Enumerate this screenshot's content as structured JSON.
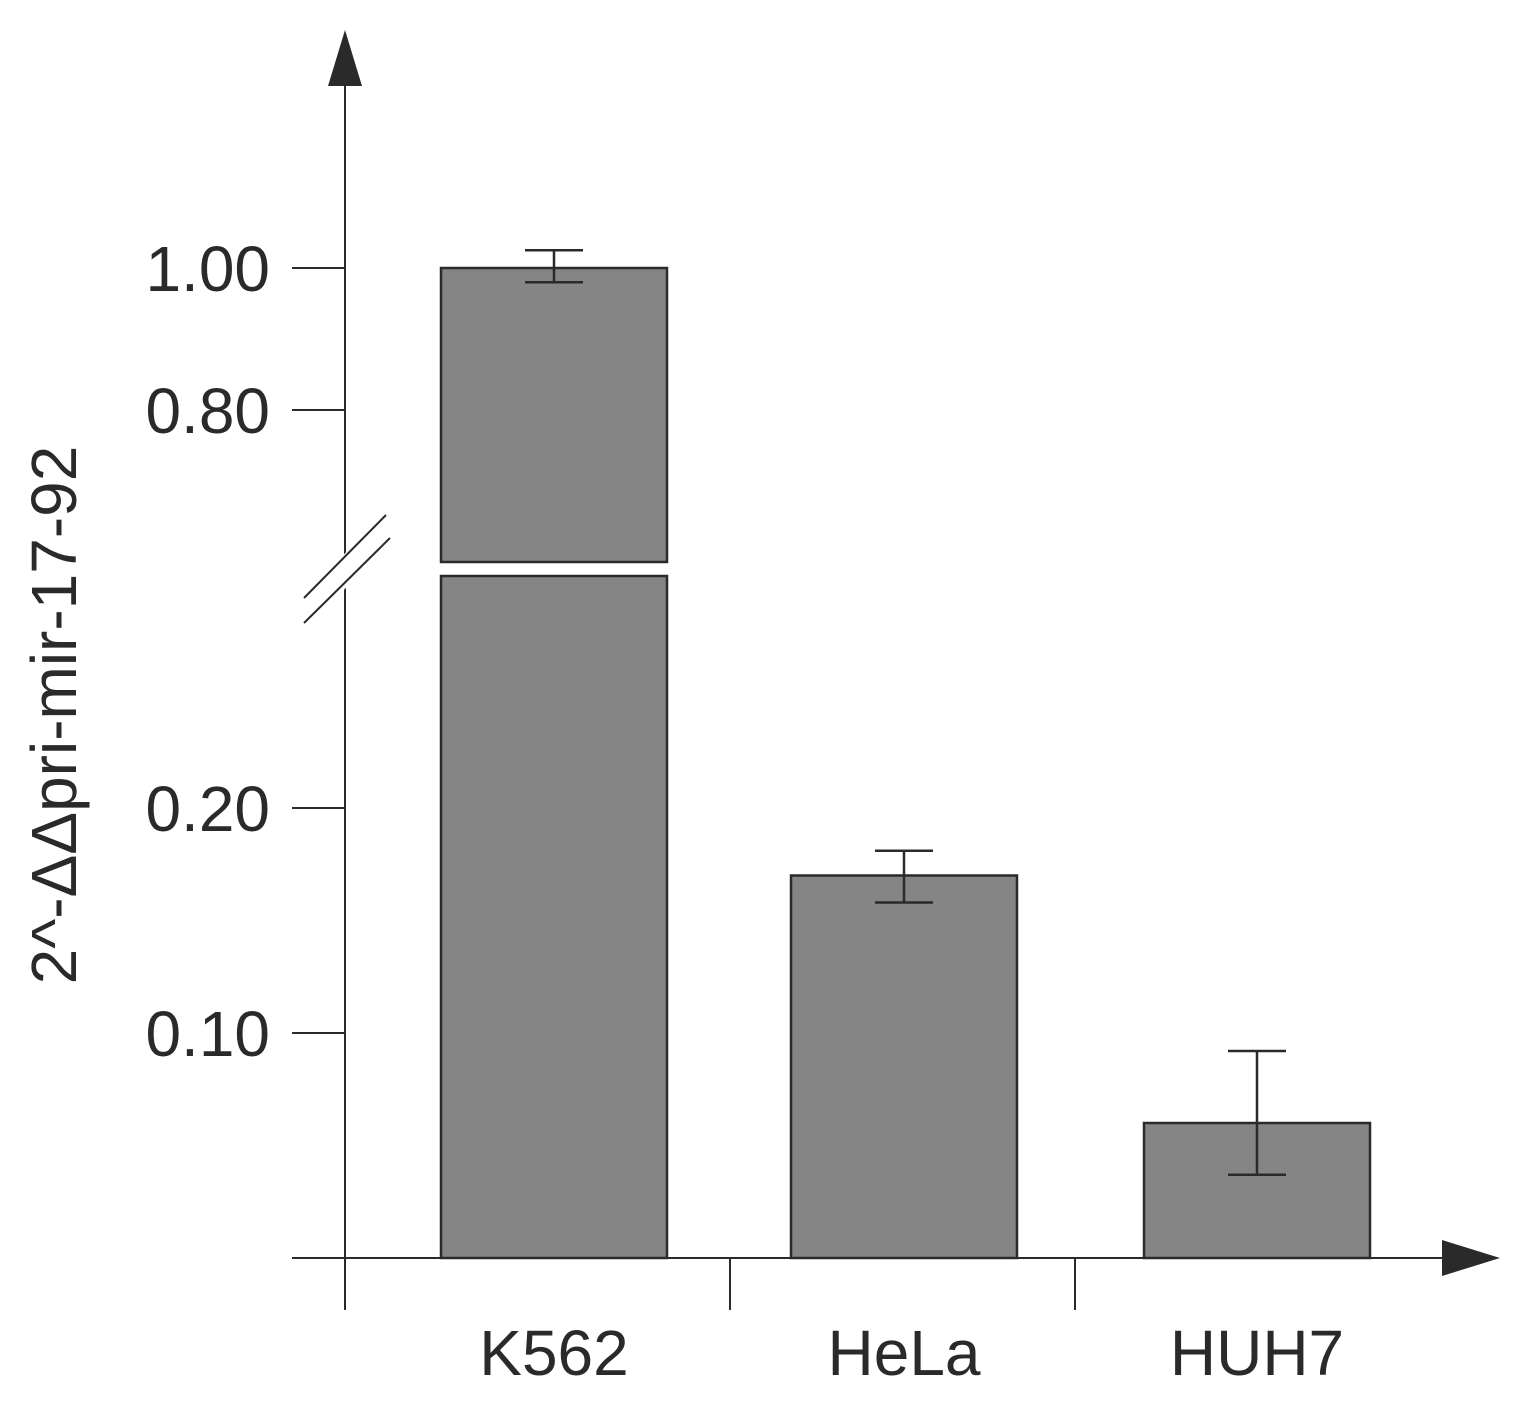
{
  "chart_data": {
    "type": "bar",
    "categories": [
      "K562",
      "HeLa",
      "HUH7"
    ],
    "values": [
      1.0,
      0.17,
      0.06
    ],
    "error": [
      [
        0.98,
        1.025
      ],
      [
        0.158,
        0.181
      ],
      [
        0.037,
        0.092
      ]
    ],
    "ylabel": "2^-ΔΔpri-mir-17-92",
    "xlabel": "",
    "y_ticks": [
      0.1,
      0.2,
      0.8,
      1.0
    ],
    "y_tick_labels": [
      "0.10",
      "0.20",
      "0.80",
      "1.00"
    ],
    "y_axis_break": [
      0.25,
      0.65
    ],
    "bar_color": "#858585",
    "axis_color": "#2a2a2a",
    "grid": false,
    "legend": "none"
  }
}
